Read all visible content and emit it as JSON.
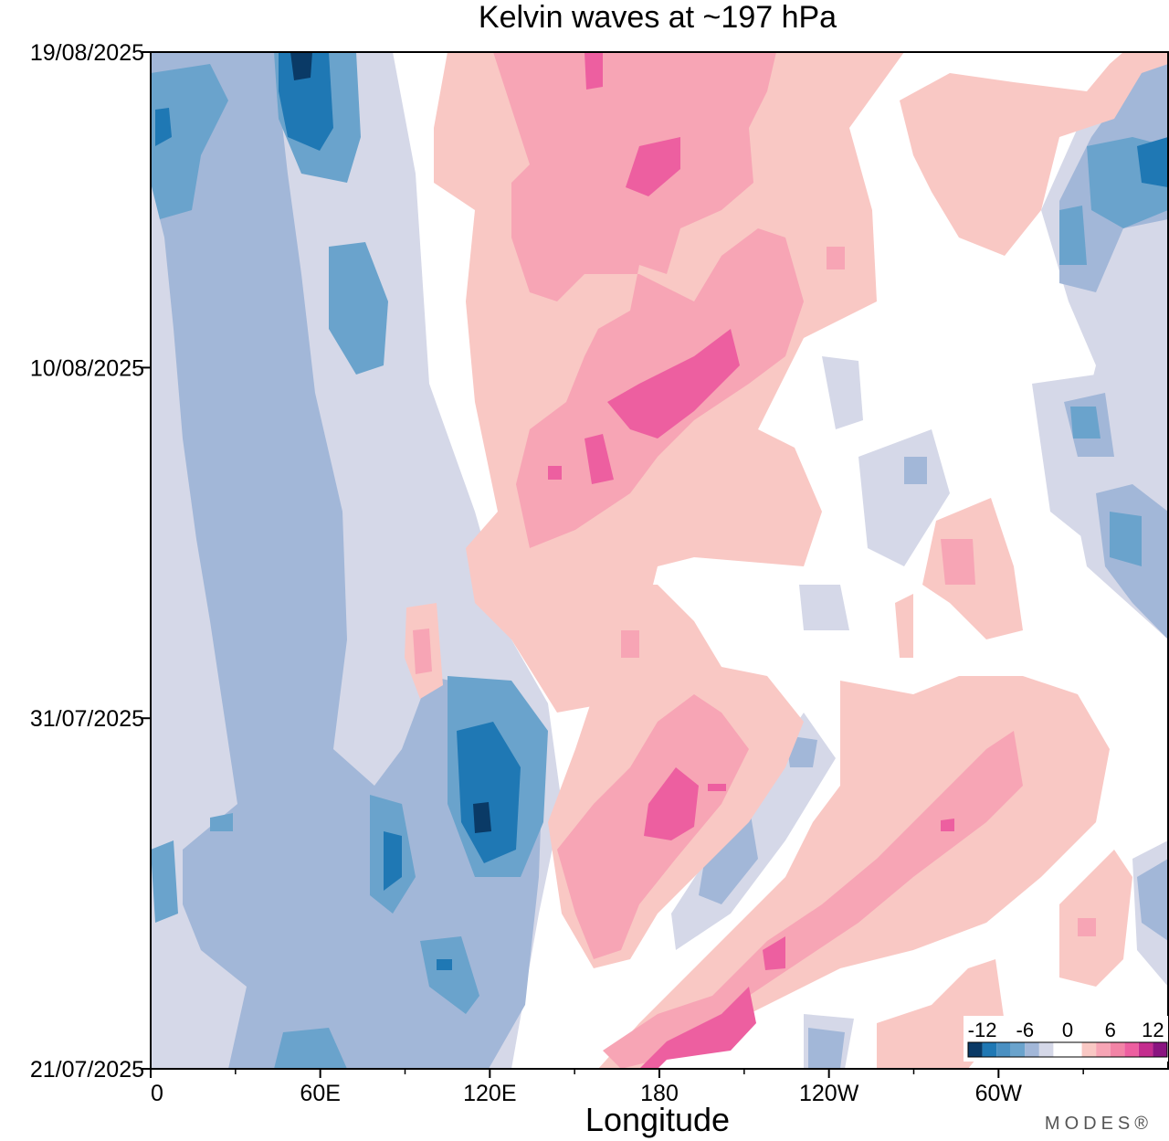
{
  "chart_data": {
    "type": "heatmap",
    "title": "Kelvin waves at ~197 hPa",
    "xlabel": "Longitude",
    "ylabel": "",
    "x_ticks": [
      "0",
      "60E",
      "120E",
      "180",
      "120W",
      "60W"
    ],
    "x_tick_values": [
      0,
      60,
      120,
      180,
      240,
      300
    ],
    "xlim": [
      0,
      360
    ],
    "y_ticks": [
      "19/08/2025",
      "10/08/2025",
      "31/07/2025",
      "21/07/2025"
    ],
    "y_tick_values": [
      "2025-08-19",
      "2025-08-10",
      "2025-07-31",
      "2025-07-21"
    ],
    "ylim": [
      "2025-07-21",
      "2025-08-19"
    ],
    "colorbar": {
      "tick_labels": [
        "-12",
        "-6",
        "0",
        "6",
        "12"
      ],
      "tick_values": [
        -12,
        -6,
        0,
        6,
        12
      ],
      "levels": [
        -14,
        -12,
        -10,
        -8,
        -6,
        -4,
        -2,
        2,
        4,
        6,
        8,
        10,
        12,
        14
      ],
      "colors": [
        "#0a3a66",
        "#1f78b4",
        "#4a90c2",
        "#6aa3cc",
        "#a2b7d8",
        "#d5d8e8",
        "#ffffff",
        "#f9c8c4",
        "#f7a5b5",
        "#f284a6",
        "#ed5fa0",
        "#c42d8e",
        "#8a1480"
      ]
    },
    "grid": false,
    "legend_position": "bottom-right"
  },
  "brand": "MODES®"
}
